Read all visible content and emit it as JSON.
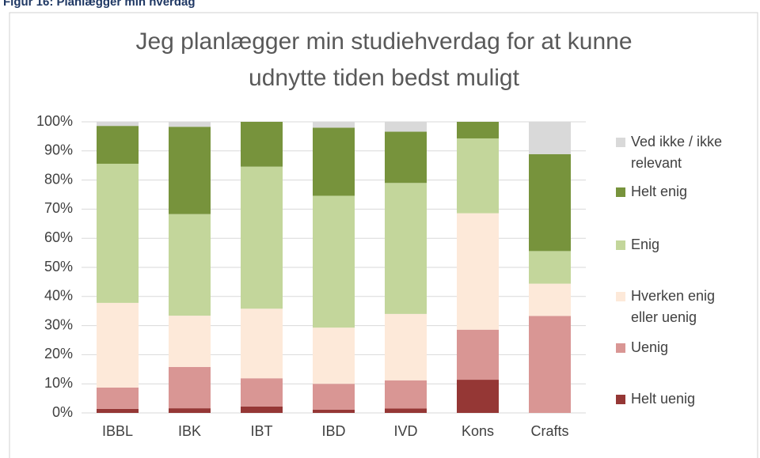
{
  "caption": "Figur 16: Planlægger min hverdag",
  "chart_data": {
    "type": "stacked_bar",
    "title": "Jeg planlægger min studiehverdag for at kunne udnytte tiden bedst muligt",
    "categories": [
      "IBBL",
      "IBK",
      "IBT",
      "IBD",
      "IVD",
      "Kons",
      "Crafts"
    ],
    "series": [
      {
        "name": "Helt uenig",
        "color": "#953735",
        "values": [
          1.4,
          1.6,
          2.2,
          1.1,
          1.5,
          11.4,
          0
        ]
      },
      {
        "name": "Uenig",
        "color": "#d99694",
        "values": [
          7.3,
          14.2,
          9.7,
          8.9,
          9.7,
          17.2,
          33.3
        ]
      },
      {
        "name": "Hverken enig eller uenig",
        "color": "#fde9d9",
        "values": [
          29.1,
          17.6,
          23.9,
          19.3,
          22.8,
          40,
          11.1
        ]
      },
      {
        "name": "Enig",
        "color": "#c3d69b",
        "values": [
          47.8,
          34.9,
          48.8,
          45.3,
          45,
          25.7,
          11.2
        ]
      },
      {
        "name": "Helt enig",
        "color": "#77933c",
        "values": [
          13,
          30,
          15.4,
          23.4,
          17.6,
          5.7,
          33.3
        ]
      },
      {
        "name": "Ved ikke / ikke relevant",
        "color": "#d9d9d9",
        "values": [
          1.4,
          1.7,
          0,
          2,
          3.4,
          0,
          11.1
        ]
      }
    ],
    "ylim": [
      0,
      100
    ],
    "yticks": [
      {
        "value": 0,
        "label": "0%"
      },
      {
        "value": 10,
        "label": "10%"
      },
      {
        "value": 20,
        "label": "20%"
      },
      {
        "value": 30,
        "label": "30%"
      },
      {
        "value": 40,
        "label": "40%"
      },
      {
        "value": 50,
        "label": "50%"
      },
      {
        "value": 60,
        "label": "60%"
      },
      {
        "value": 70,
        "label": "70%"
      },
      {
        "value": 80,
        "label": "80%"
      },
      {
        "value": 90,
        "label": "90%"
      },
      {
        "value": 100,
        "label": "100%"
      }
    ],
    "grid": true,
    "legend": "right"
  }
}
